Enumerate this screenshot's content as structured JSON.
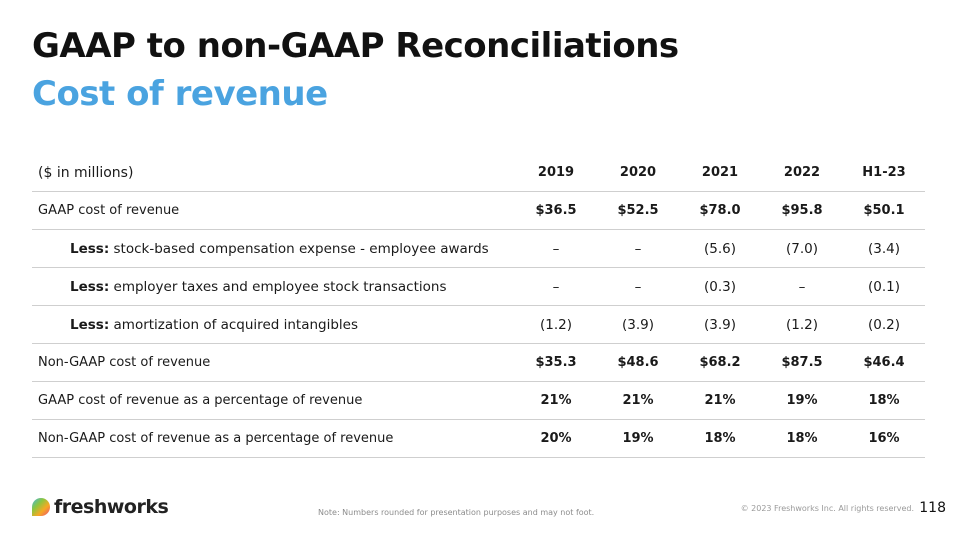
{
  "header": {
    "title": "GAAP to non-GAAP Reconciliations",
    "subtitle": "Cost of revenue"
  },
  "table": {
    "unit_label": "($ in millions)",
    "years": [
      "2019",
      "2020",
      "2021",
      "2022",
      "H1-23"
    ],
    "rows": [
      {
        "prefix": "",
        "label": "GAAP cost of revenue",
        "values": [
          "$36.5",
          "$52.5",
          "$78.0",
          "$95.8",
          "$50.1"
        ]
      },
      {
        "prefix": "Less:",
        "label": " stock-based compensation expense - employee awards",
        "values": [
          "–",
          "–",
          "(5.6)",
          "(7.0)",
          "(3.4)"
        ]
      },
      {
        "prefix": "Less:",
        "label": " employer taxes and employee stock transactions",
        "values": [
          "–",
          "–",
          "(0.3)",
          "–",
          "(0.1)"
        ]
      },
      {
        "prefix": "Less:",
        "label": " amortization of acquired intangibles",
        "values": [
          "(1.2)",
          "(3.9)",
          "(3.9)",
          "(1.2)",
          "(0.2)"
        ]
      },
      {
        "prefix": "",
        "label": "Non-GAAP cost of revenue",
        "values": [
          "$35.3",
          "$48.6",
          "$68.2",
          "$87.5",
          "$46.4"
        ]
      },
      {
        "prefix": "",
        "label": "GAAP cost of revenue as a percentage of revenue",
        "values": [
          "21%",
          "21%",
          "21%",
          "19%",
          "18%"
        ]
      },
      {
        "prefix": "",
        "label": "Non-GAAP cost of revenue as a percentage of revenue",
        "values": [
          "20%",
          "19%",
          "18%",
          "18%",
          "16%"
        ]
      }
    ]
  },
  "footer": {
    "logo_text": "freshworks",
    "logo_icon": "freshworks-logo-icon",
    "note": "Note: Numbers rounded for presentation purposes and may not foot.",
    "copyright": "© 2023 Freshworks Inc. All rights reserved.",
    "page_number": "118"
  }
}
